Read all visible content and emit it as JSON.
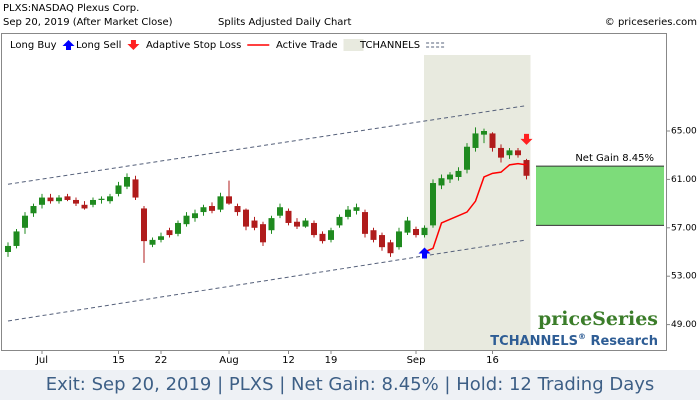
{
  "chart_data": {
    "type": "candlestick",
    "title": "PLXS:NASDAQ Plexus Corp.",
    "subtitle": "Sep 20, 2019 (After Market Close)",
    "subtitle_note": "Splits Adjusted Daily Chart",
    "copyright": "© priceseries.com",
    "legend": [
      {
        "name": "Long Buy",
        "color": "#0000ff"
      },
      {
        "name": "Long Sell",
        "color": "#ff2020"
      },
      {
        "name": "Adaptive Stop Loss",
        "color": "#ff0000"
      },
      {
        "name": "Active Trade",
        "color": "#e8eadf"
      },
      {
        "name": "TCHANNELS",
        "color": "#55607a"
      }
    ],
    "categories": [
      null,
      null,
      null,
      null,
      "Jul",
      null,
      null,
      null,
      null,
      null,
      null,
      null,
      null,
      "15",
      null,
      null,
      null,
      null,
      "22",
      null,
      null,
      null,
      null,
      null,
      null,
      null,
      "Aug",
      null,
      null,
      null,
      null,
      null,
      null,
      "12",
      null,
      null,
      null,
      null,
      "19",
      null,
      null,
      null,
      null,
      null,
      null,
      null,
      null,
      null,
      "Sep",
      null,
      null,
      null,
      null,
      null,
      null,
      null,
      null,
      "16",
      null,
      null,
      null,
      null
    ],
    "open": [
      55.0,
      55.5,
      57.0,
      58.2,
      58.9,
      59.5,
      59.2,
      59.6,
      59.3,
      58.9,
      58.9,
      59.3,
      59.2,
      59.8,
      60.4,
      61.0,
      58.6,
      55.6,
      56.0,
      56.8,
      56.5,
      57.3,
      57.8,
      58.3,
      58.8,
      58.5,
      59.6,
      58.8,
      58.5,
      57.6,
      57.3,
      56.8,
      58.0,
      58.4,
      57.5,
      57.1,
      57.4,
      56.5,
      56.0,
      57.2,
      57.9,
      58.4,
      58.3,
      56.8,
      56.4,
      55.8,
      55.4,
      56.6,
      56.9,
      56.4,
      57.2,
      60.5,
      61.0,
      61.2,
      61.8,
      63.6,
      64.7,
      64.8,
      63.6,
      63.0,
      63.4,
      62.6
    ],
    "high": [
      55.8,
      56.9,
      58.3,
      59.0,
      59.8,
      59.8,
      59.7,
      59.8,
      59.5,
      59.2,
      59.5,
      59.6,
      59.8,
      60.8,
      61.5,
      61.3,
      58.8,
      56.2,
      56.6,
      57.0,
      57.6,
      58.3,
      58.5,
      58.9,
      59.1,
      59.9,
      60.9,
      59.0,
      58.6,
      57.9,
      57.5,
      58.0,
      59.0,
      58.6,
      57.8,
      57.8,
      57.6,
      56.7,
      57.0,
      58.1,
      58.8,
      59.0,
      58.5,
      57.0,
      56.6,
      56.0,
      57.0,
      57.9,
      57.1,
      57.2,
      61.0,
      61.4,
      61.6,
      62.0,
      64.0,
      65.3,
      65.2,
      64.9,
      63.9,
      63.6,
      63.6,
      62.7
    ],
    "low": [
      54.6,
      55.3,
      56.5,
      57.9,
      58.6,
      59.0,
      59.0,
      59.2,
      58.8,
      58.5,
      58.7,
      59.0,
      59.0,
      59.6,
      60.2,
      59.3,
      54.1,
      55.4,
      55.8,
      56.2,
      56.3,
      57.1,
      57.5,
      58.0,
      58.2,
      58.3,
      58.9,
      58.0,
      56.8,
      56.8,
      55.5,
      56.5,
      57.8,
      57.2,
      56.9,
      57.0,
      56.2,
      55.7,
      55.8,
      57.0,
      57.7,
      58.1,
      56.2,
      55.8,
      55.1,
      54.6,
      55.2,
      56.4,
      56.2,
      56.2,
      57.0,
      60.2,
      60.7,
      60.9,
      61.5,
      63.3,
      64.0,
      63.3,
      62.4,
      62.7,
      62.8,
      61.0
    ],
    "close": [
      55.5,
      56.7,
      58.0,
      58.8,
      59.5,
      59.2,
      59.5,
      59.3,
      59.0,
      58.6,
      59.3,
      59.4,
      59.6,
      60.5,
      61.2,
      59.5,
      55.9,
      56.0,
      56.3,
      56.4,
      57.4,
      58.0,
      58.2,
      58.7,
      58.4,
      59.6,
      59.0,
      58.3,
      57.1,
      57.0,
      55.8,
      57.8,
      58.7,
      57.4,
      57.1,
      57.6,
      56.4,
      55.9,
      56.8,
      57.9,
      58.5,
      58.7,
      56.5,
      56.0,
      55.4,
      54.9,
      56.7,
      57.6,
      56.4,
      57.0,
      60.7,
      61.1,
      61.4,
      61.7,
      63.7,
      64.8,
      65.0,
      63.6,
      62.8,
      63.4,
      63.0,
      61.3
    ],
    "up_color": "#1f8a1f",
    "down_color": "#b01c1c",
    "stop_loss": [
      null,
      null,
      null,
      null,
      null,
      null,
      null,
      null,
      null,
      null,
      null,
      null,
      null,
      null,
      null,
      null,
      null,
      null,
      null,
      null,
      null,
      null,
      null,
      null,
      null,
      null,
      null,
      null,
      null,
      null,
      null,
      null,
      null,
      null,
      null,
      null,
      null,
      null,
      null,
      null,
      null,
      null,
      null,
      null,
      null,
      null,
      null,
      null,
      null,
      55.0,
      55.3,
      57.4,
      57.7,
      58.0,
      58.3,
      59.2,
      61.2,
      61.5,
      61.6,
      62.2,
      62.3,
      62.2
    ],
    "channel_upper": [
      60.6,
      67.1
    ],
    "channel_lower": [
      49.3,
      56.0
    ],
    "net_gain": {
      "label": "Net Gain 8.45%",
      "top": 62.1,
      "bottom": 57.2,
      "color": "#7ddc7a"
    },
    "ylim": [
      46.9,
      73.1
    ],
    "yticks": [
      {
        "value": 49,
        "label": "49.00"
      },
      {
        "value": 53,
        "label": "53.00"
      },
      {
        "value": 57,
        "label": "57.00"
      },
      {
        "value": 61,
        "label": "61.00"
      },
      {
        "value": 65,
        "label": "65.00"
      }
    ],
    "watermark_brand": "priceSeries",
    "watermark_product": "TCHANNELS",
    "watermark_mark": "®",
    "watermark_suffix": "Research",
    "footer": "Exit: Sep 20, 2019 | PLXS | Net Gain: 8.45% | Hold: 12 Trading Days"
  }
}
